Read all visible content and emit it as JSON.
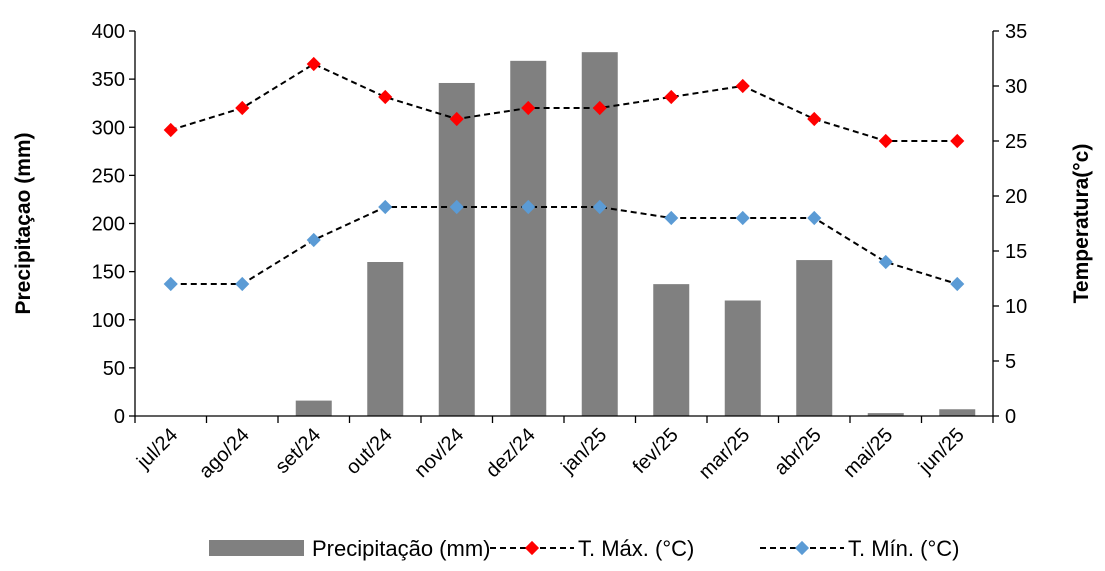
{
  "chart_data": {
    "type": "bar",
    "categories": [
      "jul/24",
      "ago/24",
      "set/24",
      "out/24",
      "nov/24",
      "dez/24",
      "jan/25",
      "fev/25",
      "mar/25",
      "abr/25",
      "mai/25",
      "jun/25"
    ],
    "ylabel": "Precipitaçao (mm)",
    "y2label": "Temperatura(°c)",
    "ylim": [
      0,
      400
    ],
    "y2lim": [
      0,
      35
    ],
    "yticks": [
      "0",
      "50",
      "100",
      "150",
      "200",
      "250",
      "300",
      "350",
      "400"
    ],
    "y2ticks": [
      "0",
      "5",
      "10",
      "15",
      "20",
      "25",
      "30",
      "35"
    ],
    "grid": false,
    "legend_position": "bottom",
    "series": [
      {
        "name": "Precipitação (mm)",
        "type": "bar",
        "axis": "left",
        "color": "#808080",
        "values": [
          0,
          0,
          16,
          160,
          346,
          369,
          378,
          137,
          120,
          162,
          3,
          7
        ]
      },
      {
        "name": "T. Máx. (°C)",
        "type": "line",
        "axis": "right",
        "color": "#ff0000",
        "line_style": "dashed",
        "marker": "diamond",
        "values": [
          26,
          28,
          32,
          29,
          27,
          28,
          28,
          29,
          30,
          27,
          25,
          25
        ]
      },
      {
        "name": "T. Mín. (°C)",
        "type": "line",
        "axis": "right",
        "color": "#5b9bd5",
        "line_style": "dashed",
        "marker": "diamond",
        "values": [
          12,
          12,
          16,
          19,
          19,
          19,
          19,
          18,
          18,
          18,
          14,
          12
        ]
      }
    ]
  }
}
